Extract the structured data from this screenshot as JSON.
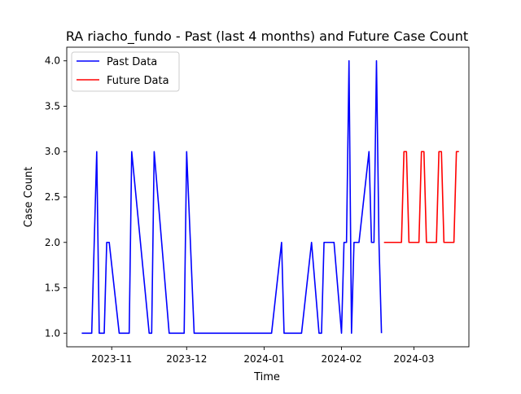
{
  "chart_data": {
    "type": "line",
    "title": "RA riacho_fundo - Past (last 4 months) and Future Case Count",
    "xlabel": "Time",
    "ylabel": "Case Count",
    "xlim": [
      "2023-10-14",
      "2024-03-23"
    ],
    "ylim": [
      0.85,
      4.15
    ],
    "x_ticks": [
      {
        "date": "2023-11-01",
        "label": "2023-11"
      },
      {
        "date": "2023-12-01",
        "label": "2023-12"
      },
      {
        "date": "2024-01-01",
        "label": "2024-01"
      },
      {
        "date": "2024-02-01",
        "label": "2024-02"
      },
      {
        "date": "2024-03-01",
        "label": "2024-03"
      }
    ],
    "y_ticks": [
      "1.0",
      "1.5",
      "2.0",
      "2.5",
      "3.0",
      "3.5",
      "4.0"
    ],
    "grid": false,
    "legend_position": "top-left",
    "series": [
      {
        "name": "Past Data",
        "color": "#0000ff",
        "x": [
          "2023-10-20",
          "2023-10-24",
          "2023-10-26",
          "2023-10-27",
          "2023-10-29",
          "2023-10-30",
          "2023-10-31",
          "2023-11-04",
          "2023-11-07",
          "2023-11-08",
          "2023-11-09",
          "2023-11-16",
          "2023-11-17",
          "2023-11-18",
          "2023-11-24",
          "2023-11-30",
          "2023-12-01",
          "2023-12-04",
          "2024-01-04",
          "2024-01-08",
          "2024-01-09",
          "2024-01-16",
          "2024-01-20",
          "2024-01-23",
          "2024-01-24",
          "2024-01-25",
          "2024-01-29",
          "2024-02-01",
          "2024-02-02",
          "2024-02-03",
          "2024-02-04",
          "2024-02-05",
          "2024-02-06",
          "2024-02-07",
          "2024-02-08",
          "2024-02-12",
          "2024-02-13",
          "2024-02-14",
          "2024-02-15",
          "2024-02-16",
          "2024-02-17"
        ],
        "y": [
          1,
          1,
          3,
          1,
          1,
          2,
          2,
          1,
          1,
          1,
          3,
          1,
          1,
          3,
          1,
          1,
          3,
          1,
          1,
          2,
          1,
          1,
          2,
          1,
          1,
          2,
          2,
          1,
          2,
          2,
          4,
          1,
          2,
          2,
          2,
          3,
          2,
          2,
          4,
          2,
          1
        ]
      },
      {
        "name": "Future Data",
        "color": "#ff0000",
        "x": [
          "2024-02-18",
          "2024-02-25",
          "2024-02-26",
          "2024-02-27",
          "2024-02-28",
          "2024-03-03",
          "2024-03-04",
          "2024-03-05",
          "2024-03-06",
          "2024-03-10",
          "2024-03-11",
          "2024-03-12",
          "2024-03-13",
          "2024-03-17",
          "2024-03-18",
          "2024-03-19"
        ],
        "y": [
          2,
          2,
          3,
          3,
          2,
          2,
          3,
          3,
          2,
          2,
          3,
          3,
          2,
          2,
          3,
          3
        ]
      }
    ]
  }
}
